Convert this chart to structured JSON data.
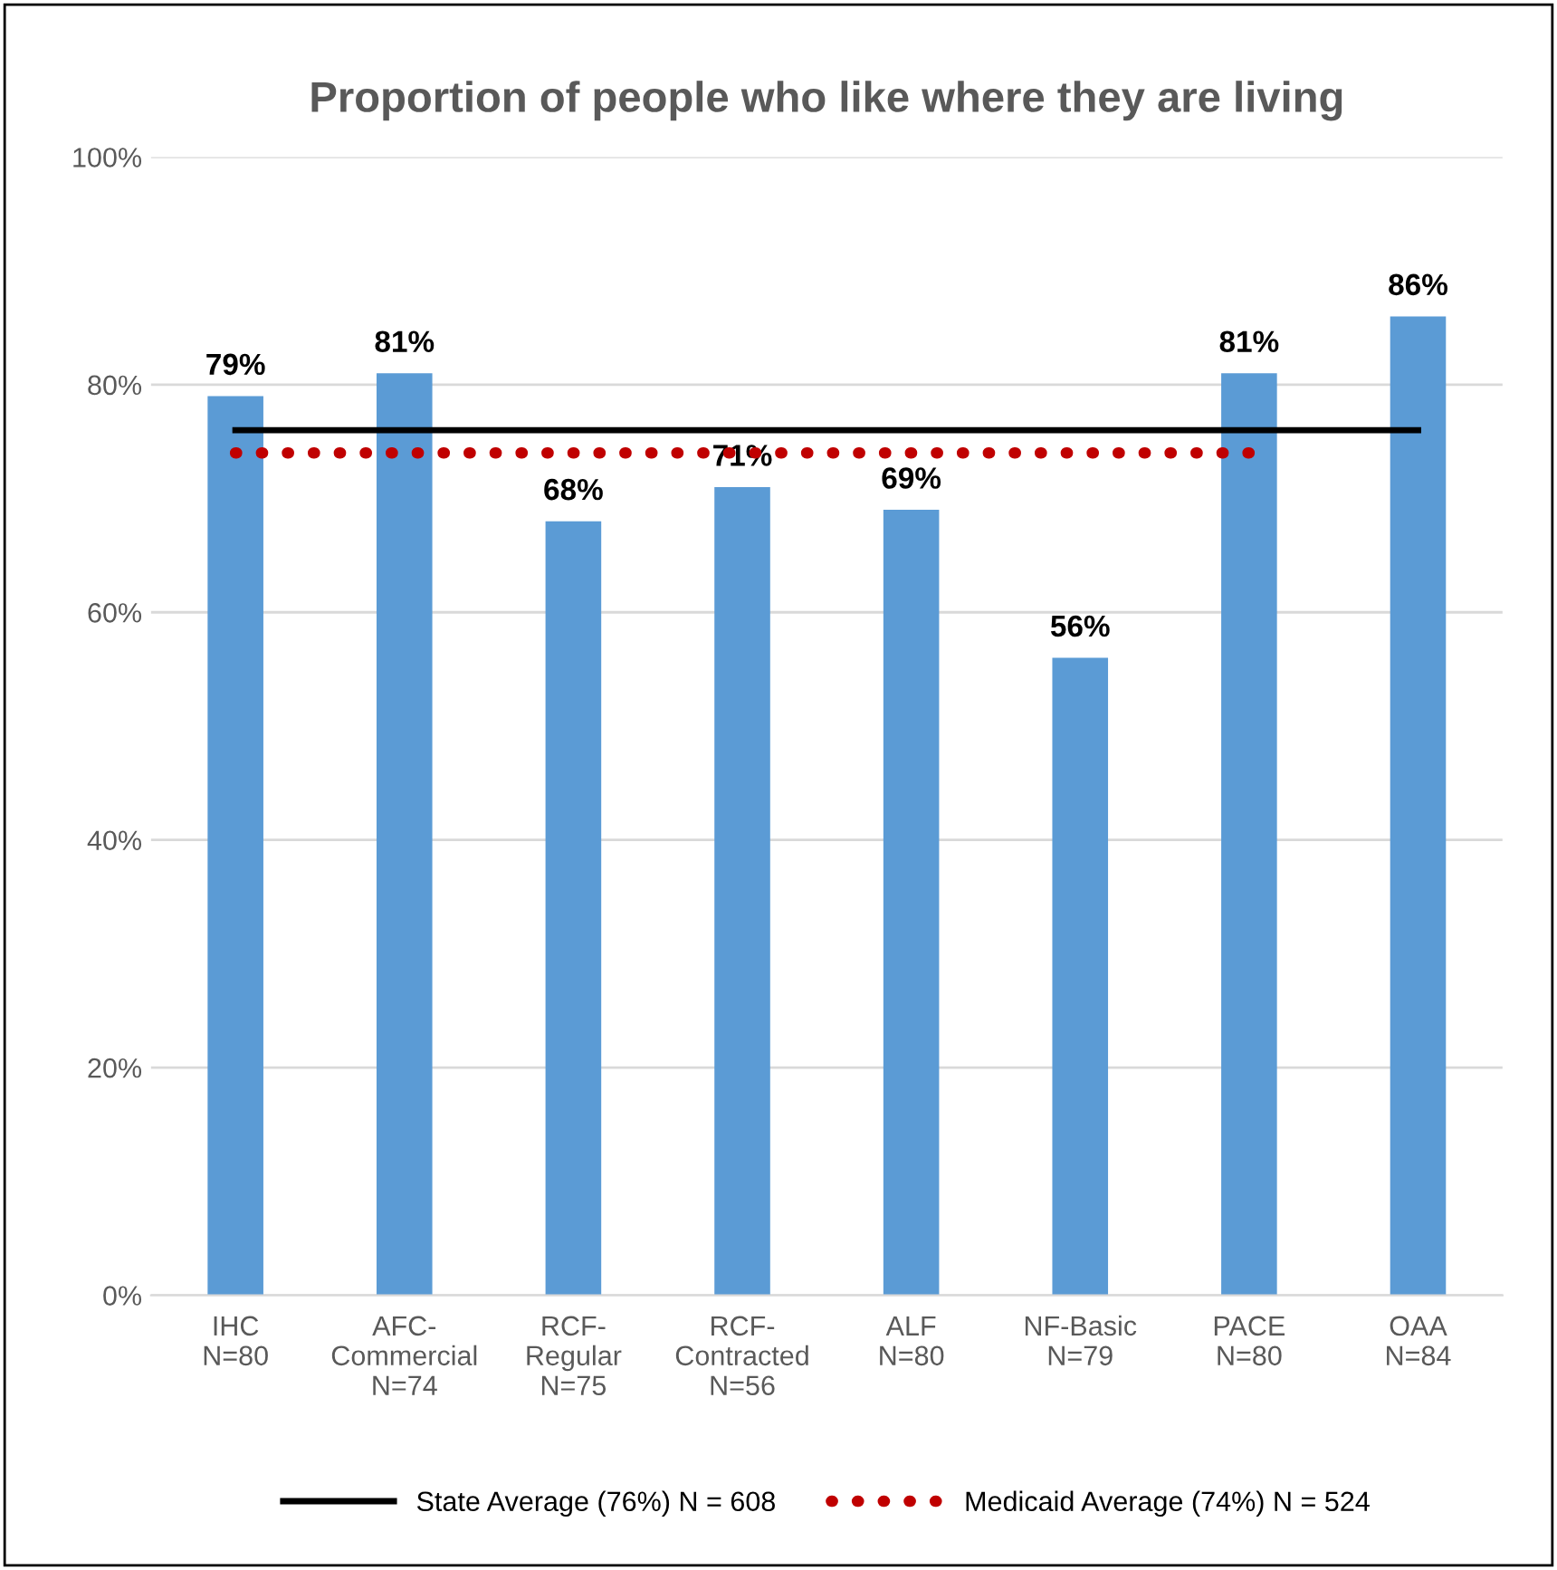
{
  "chart_data": {
    "type": "bar",
    "title": "Proportion of people who like where they are living",
    "categories": [
      "IHC\nN=80",
      "AFC-\nCommercial\nN=74",
      "RCF-\nRegular\nN=75",
      "RCF-\nContracted\nN=56",
      "ALF\nN=80",
      "NF-Basic\nN=79",
      "PACE\nN=80",
      "OAA\nN=84"
    ],
    "series": [
      {
        "color": "#5b9bd5",
        "values": [
          79,
          81,
          68,
          71,
          69,
          56,
          81,
          86
        ],
        "value_labels": [
          "79%",
          "81%",
          "68%",
          "71%",
          "69%",
          "56%",
          "81%",
          "86%"
        ]
      },
      {
        "type": "line",
        "name": "State Average (76%) N = 608",
        "color": "#000000",
        "line_style": "solid",
        "values": [
          76,
          76,
          76,
          76,
          76,
          76,
          76,
          76
        ]
      },
      {
        "type": "line",
        "name": "Medicaid Average (74%) N = 524",
        "color": "#c00000",
        "line_style": "dotted",
        "values": [
          74,
          74,
          74,
          74,
          74,
          74,
          74,
          null
        ]
      }
    ],
    "ylim": [
      0,
      100
    ],
    "yticks": [
      {
        "value": 0,
        "label": "0%"
      },
      {
        "value": 20,
        "label": "20%"
      },
      {
        "value": 40,
        "label": "40%"
      },
      {
        "value": 60,
        "label": "60%"
      },
      {
        "value": 80,
        "label": "80%"
      },
      {
        "value": 100,
        "label": "100%"
      }
    ],
    "grid": "y",
    "legend": "bottom"
  }
}
